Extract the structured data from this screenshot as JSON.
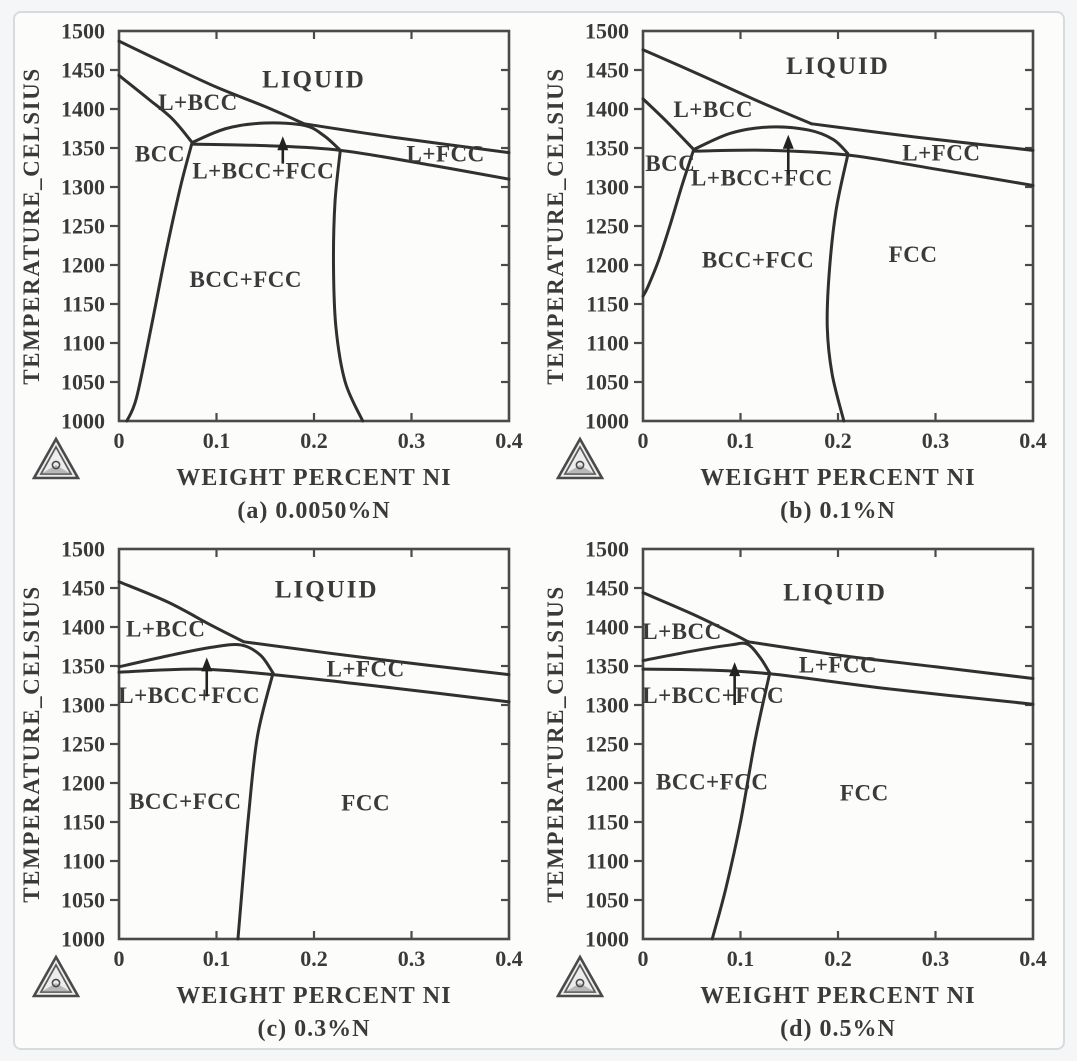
{
  "page": {
    "background": "#f5f6f8",
    "panel_background": "#fcfcfb",
    "panel_border": "#d8dbde",
    "line_color": "#303030",
    "text_color": "#3a3a3a"
  },
  "logo": {
    "name": "thermo-calc-triangle-logo"
  },
  "axes_shared": {
    "xlabel": "WEIGHT PERCENT NI",
    "ylabel": "TEMPERATURE_CELSIUS",
    "xlim": [
      0,
      0.4
    ],
    "ylim": [
      1000,
      1500
    ],
    "xticks": [
      0,
      0.1,
      0.2,
      0.3,
      0.4
    ],
    "xtick_labels": [
      "0",
      "0.1",
      "0.2",
      "0.3",
      "0.4"
    ],
    "ytick_step": 50,
    "grid": false,
    "legend": "none"
  },
  "chart_data": [
    {
      "type": "line",
      "id": "a",
      "caption": "(a) 0.0050%N",
      "xlabel": "WEIGHT PERCENT NI",
      "ylabel": "TEMPERATURE_CELSIUS",
      "xlim": [
        0,
        0.4
      ],
      "ylim": [
        1000,
        1500
      ],
      "series": [
        {
          "name": "liquidus",
          "points": [
            [
              0,
              1487
            ],
            [
              0.05,
              1457
            ],
            [
              0.1,
              1428
            ],
            [
              0.15,
              1403
            ],
            [
              0.19,
              1381
            ]
          ]
        },
        {
          "name": "liquid-fcc-top",
          "points": [
            [
              0.19,
              1381
            ],
            [
              0.28,
              1364
            ],
            [
              0.4,
              1344
            ]
          ]
        },
        {
          "name": "bcc-solidus",
          "points": [
            [
              0,
              1443
            ],
            [
              0.03,
              1413
            ],
            [
              0.055,
              1387
            ],
            [
              0.075,
              1357
            ]
          ]
        },
        {
          "name": "fcc-dome",
          "points": [
            [
              0.075,
              1357
            ],
            [
              0.11,
              1375
            ],
            [
              0.15,
              1382
            ],
            [
              0.19,
              1379
            ],
            [
              0.21,
              1366
            ],
            [
              0.227,
              1347
            ]
          ]
        },
        {
          "name": "solidus-bottom",
          "points": [
            [
              0.075,
              1355
            ],
            [
              0.15,
              1353
            ],
            [
              0.227,
              1347
            ],
            [
              0.32,
              1328
            ],
            [
              0.4,
              1310
            ]
          ]
        },
        {
          "name": "bcc-solvus",
          "points": [
            [
              0.075,
              1357
            ],
            [
              0.063,
              1300
            ],
            [
              0.048,
              1215
            ],
            [
              0.033,
              1120
            ],
            [
              0.018,
              1030
            ],
            [
              0.008,
              1000
            ]
          ]
        },
        {
          "name": "fcc-solvus",
          "points": [
            [
              0.227,
              1347
            ],
            [
              0.2215,
              1280
            ],
            [
              0.22,
              1200
            ],
            [
              0.2225,
              1120
            ],
            [
              0.232,
              1050
            ],
            [
              0.25,
              1000
            ]
          ]
        }
      ],
      "arrow": {
        "x": 0.168,
        "tail": 1330,
        "head": 1365
      },
      "labels": [
        {
          "text": "LIQUID",
          "x": 0.2,
          "y": 1438,
          "size": 25,
          "ls": 2
        },
        {
          "text": "L+BCC",
          "x": 0.081,
          "y": 1409
        },
        {
          "text": "BCC",
          "x": 0.042,
          "y": 1343
        },
        {
          "text": "L+BCC+FCC",
          "x": 0.148,
          "y": 1321
        },
        {
          "text": "L+FCC",
          "x": 0.335,
          "y": 1343
        },
        {
          "text": "BCC+FCC",
          "x": 0.13,
          "y": 1182
        }
      ]
    },
    {
      "type": "line",
      "id": "b",
      "caption": "(b) 0.1%N",
      "xlabel": "WEIGHT PERCENT NI",
      "ylabel": "TEMPERATURE_CELSIUS",
      "xlim": [
        0,
        0.4
      ],
      "ylim": [
        1000,
        1500
      ],
      "series": [
        {
          "name": "liquidus",
          "points": [
            [
              0,
              1476
            ],
            [
              0.06,
              1443
            ],
            [
              0.12,
              1409
            ],
            [
              0.173,
              1381
            ]
          ]
        },
        {
          "name": "liquid-fcc-top",
          "points": [
            [
              0.173,
              1381
            ],
            [
              0.28,
              1364
            ],
            [
              0.4,
              1347
            ]
          ]
        },
        {
          "name": "bcc-solidus",
          "points": [
            [
              0,
              1413
            ],
            [
              0.025,
              1383
            ],
            [
              0.052,
              1348
            ]
          ]
        },
        {
          "name": "fcc-dome",
          "points": [
            [
              0.052,
              1348
            ],
            [
              0.09,
              1369
            ],
            [
              0.13,
              1377
            ],
            [
              0.17,
              1373
            ],
            [
              0.195,
              1361
            ],
            [
              0.21,
              1343
            ]
          ]
        },
        {
          "name": "solidus-bottom",
          "points": [
            [
              0.052,
              1346
            ],
            [
              0.13,
              1347
            ],
            [
              0.21,
              1341
            ],
            [
              0.3,
              1323
            ],
            [
              0.4,
              1302
            ]
          ]
        },
        {
          "name": "bcc-solvus",
          "points": [
            [
              0.052,
              1348
            ],
            [
              0.04,
              1302
            ],
            [
              0.028,
              1252
            ],
            [
              0.016,
              1206
            ],
            [
              0.005,
              1172
            ],
            [
              0,
              1160
            ]
          ]
        },
        {
          "name": "fcc-solvus",
          "points": [
            [
              0.21,
              1341
            ],
            [
              0.198,
              1270
            ],
            [
              0.191,
              1190
            ],
            [
              0.189,
              1120
            ],
            [
              0.194,
              1060
            ],
            [
              0.206,
              1000
            ]
          ]
        }
      ],
      "arrow": {
        "x": 0.149,
        "tail": 1316,
        "head": 1367
      },
      "labels": [
        {
          "text": "LIQUID",
          "x": 0.2,
          "y": 1455,
          "size": 25,
          "ls": 2
        },
        {
          "text": "L+BCC",
          "x": 0.072,
          "y": 1400
        },
        {
          "text": "BCC",
          "x": 0.028,
          "y": 1331
        },
        {
          "text": "L+BCC+FCC",
          "x": 0.122,
          "y": 1312
        },
        {
          "text": "L+FCC",
          "x": 0.306,
          "y": 1344
        },
        {
          "text": "BCC+FCC",
          "x": 0.118,
          "y": 1207
        },
        {
          "text": "FCC",
          "x": 0.277,
          "y": 1214
        }
      ]
    },
    {
      "type": "line",
      "id": "c",
      "caption": "(c) 0.3%N",
      "xlabel": "WEIGHT PERCENT NI",
      "ylabel": "TEMPERATURE_CELSIUS",
      "xlim": [
        0,
        0.4
      ],
      "ylim": [
        1000,
        1500
      ],
      "series": [
        {
          "name": "liquidus",
          "points": [
            [
              0,
              1458
            ],
            [
              0.05,
              1432
            ],
            [
              0.095,
              1402
            ],
            [
              0.128,
              1381
            ]
          ]
        },
        {
          "name": "liquid-fcc-top",
          "points": [
            [
              0.128,
              1381
            ],
            [
              0.25,
              1361
            ],
            [
              0.4,
              1339
            ]
          ]
        },
        {
          "name": "fcc-dome",
          "points": [
            [
              0,
              1349
            ],
            [
              0.05,
              1363
            ],
            [
              0.095,
              1374
            ],
            [
              0.125,
              1377
            ],
            [
              0.145,
              1364
            ],
            [
              0.158,
              1341
            ]
          ]
        },
        {
          "name": "solidus-bottom",
          "points": [
            [
              0,
              1342
            ],
            [
              0.08,
              1346
            ],
            [
              0.158,
              1339
            ],
            [
              0.28,
              1322
            ],
            [
              0.4,
              1304
            ]
          ]
        },
        {
          "name": "fcc-solvus",
          "points": [
            [
              0.158,
              1341
            ],
            [
              0.142,
              1260
            ],
            [
              0.133,
              1160
            ],
            [
              0.126,
              1060
            ],
            [
              0.122,
              1000
            ]
          ]
        }
      ],
      "arrow": {
        "x": 0.09,
        "tail": 1311,
        "head": 1361
      },
      "labels": [
        {
          "text": "LIQUID",
          "x": 0.213,
          "y": 1448,
          "size": 25,
          "ls": 2
        },
        {
          "text": "L+BCC",
          "x": 0.048,
          "y": 1398
        },
        {
          "text": "L+BCC+FCC",
          "x": 0.072,
          "y": 1313
        },
        {
          "text": "L+FCC",
          "x": 0.253,
          "y": 1347
        },
        {
          "text": "BCC+FCC",
          "x": 0.068,
          "y": 1177
        },
        {
          "text": "FCC",
          "x": 0.253,
          "y": 1175
        }
      ]
    },
    {
      "type": "line",
      "id": "d",
      "caption": "(d) 0.5%N",
      "xlabel": "WEIGHT PERCENT NI",
      "ylabel": "TEMPERATURE_CELSIUS",
      "xlim": [
        0,
        0.4
      ],
      "ylim": [
        1000,
        1500
      ],
      "series": [
        {
          "name": "liquidus",
          "points": [
            [
              0,
              1444
            ],
            [
              0.05,
              1417
            ],
            [
              0.085,
              1396
            ],
            [
              0.108,
              1381
            ]
          ]
        },
        {
          "name": "liquid-fcc-top",
          "points": [
            [
              0.108,
              1381
            ],
            [
              0.2,
              1364
            ],
            [
              0.3,
              1349
            ],
            [
              0.4,
              1334
            ]
          ]
        },
        {
          "name": "fcc-dome",
          "points": [
            [
              0,
              1357
            ],
            [
              0.05,
              1369
            ],
            [
              0.09,
              1377
            ],
            [
              0.107,
              1378
            ],
            [
              0.12,
              1361
            ],
            [
              0.13,
              1341
            ]
          ]
        },
        {
          "name": "solidus-bottom",
          "points": [
            [
              0,
              1346
            ],
            [
              0.06,
              1345
            ],
            [
              0.13,
              1340
            ],
            [
              0.25,
              1321
            ],
            [
              0.4,
              1301
            ]
          ]
        },
        {
          "name": "fcc-solvus",
          "points": [
            [
              0.13,
              1341
            ],
            [
              0.115,
              1255
            ],
            [
              0.1,
              1150
            ],
            [
              0.085,
              1065
            ],
            [
              0.071,
              1000
            ]
          ]
        }
      ],
      "arrow": {
        "x": 0.094,
        "tail": 1300,
        "head": 1355
      },
      "labels": [
        {
          "text": "LIQUID",
          "x": 0.197,
          "y": 1444,
          "size": 25,
          "ls": 2
        },
        {
          "text": "L+BCC",
          "x": 0.04,
          "y": 1395
        },
        {
          "text": "L+BCC+FCC",
          "x": 0.072,
          "y": 1313
        },
        {
          "text": "L+FCC",
          "x": 0.2,
          "y": 1352
        },
        {
          "text": "BCC+FCC",
          "x": 0.071,
          "y": 1202
        },
        {
          "text": "FCC",
          "x": 0.227,
          "y": 1188
        }
      ]
    }
  ]
}
